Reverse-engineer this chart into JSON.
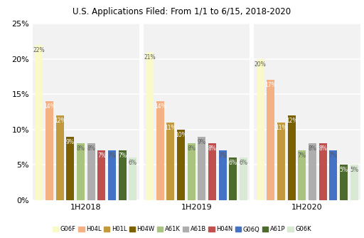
{
  "title": "U.S. Applications Filed: From 1/1 to 6/15, 2018-2020",
  "groups": [
    "1H2018",
    "1H2019",
    "1H2020"
  ],
  "categories": [
    "G06F",
    "H04L",
    "H01L",
    "H04W",
    "A61K",
    "A61B",
    "H04N",
    "G06Q",
    "A61P",
    "G06K"
  ],
  "colors": [
    "#FAFAC8",
    "#F4B183",
    "#C09A3C",
    "#7B6000",
    "#A9C47F",
    "#AEAEAE",
    "#C0504D",
    "#4472C4",
    "#4E6B2E",
    "#D8EAD3"
  ],
  "values": {
    "1H2018": [
      22,
      14,
      12,
      9,
      8,
      8,
      7,
      7,
      7,
      6
    ],
    "1H2019": [
      21,
      14,
      11,
      10,
      8,
      9,
      8,
      7,
      6,
      6
    ],
    "1H2020": [
      20,
      17,
      11,
      12,
      7,
      8,
      8,
      7,
      5,
      5
    ]
  },
  "ylim": [
    0,
    25
  ],
  "yticks": [
    0,
    5,
    10,
    15,
    20,
    25
  ],
  "ytick_labels": [
    "0%",
    "5%",
    "10%",
    "15%",
    "20%",
    "25%"
  ],
  "background_color": "#FFFFFF",
  "plot_bg_color": "#F2F2F2",
  "grid_color": "#FFFFFF",
  "label_fontsize": 5.5,
  "title_fontsize": 8.5
}
